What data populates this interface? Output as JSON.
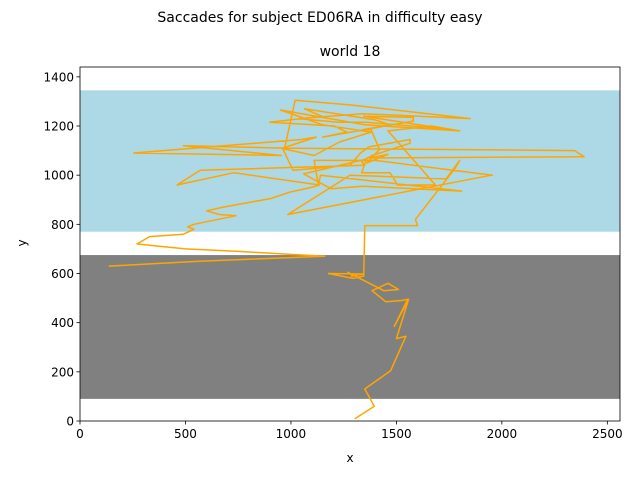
{
  "chart_data": {
    "type": "line",
    "suptitle": "Saccades for subject ED06RA in difficulty easy",
    "title": "world 18",
    "xlabel": "x",
    "ylabel": "y",
    "xlim": [
      0,
      2560
    ],
    "ylim": [
      0,
      1440
    ],
    "xticks": [
      0,
      500,
      1000,
      1500,
      2000,
      2500
    ],
    "yticks": [
      0,
      200,
      400,
      600,
      800,
      1000,
      1200,
      1400
    ],
    "regions": [
      {
        "name": "sky band",
        "y0": 770,
        "y1": 1345,
        "color": "#add8e6"
      },
      {
        "name": "ground band",
        "y0": 90,
        "y1": 675,
        "color": "#808080"
      }
    ],
    "line_color": "#ffa500",
    "series": [
      {
        "x": [
          1305,
          1395,
          1350,
          1473,
          1545,
          1500,
          1558,
          1490,
          1553,
          1525,
          1450,
          1385,
          1460,
          1510,
          1440,
          1270,
          1295,
          1285,
          1345,
          1178,
          1295,
          1345,
          1350,
          1350,
          1600,
          1590,
          1780,
          1800,
          1735,
          1280,
          985,
          1950,
          1955,
          1400,
          1110,
          1130,
          1140,
          1810,
          1340,
          1190,
          1060,
          1355,
          1360,
          1335,
          1470,
          1505,
          1685,
          1460,
          1665,
          1800,
          1350,
          950,
          985,
          1150,
          1380,
          1230,
          1110,
          950,
          2345,
          2390,
          1375,
          1460,
          1360,
          1420,
          1380,
          1340,
          1470,
          1400,
          1065,
          1145,
          900,
          1205,
          1265,
          1150,
          1580,
          1580,
          1345,
          1720,
          1355,
          1225,
          1035,
          1340,
          1850,
          1290,
          1020,
          970,
          490,
          955,
          255,
          1050,
          1120,
          960,
          1010,
          1280,
          1330,
          1370,
          1565,
          1565,
          1385,
          1335,
          1350,
          570,
          460,
          730,
          1135,
          1095,
          990,
          905,
          680,
          600,
          660,
          740,
          540,
          510,
          540,
          490,
          330,
          270,
          500,
          750,
          1160,
          565,
          140
        ],
        "y": [
          10,
          60,
          130,
          205,
          345,
          335,
          495,
          385,
          495,
          490,
          485,
          530,
          560,
          535,
          530,
          605,
          590,
          590,
          598,
          600,
          580,
          590,
          795,
          795,
          795,
          820,
          1030,
          1060,
          985,
          1000,
          840,
          1000,
          1000,
          1060,
          1060,
          960,
          1000,
          935,
          955,
          945,
          1005,
          1065,
          1070,
          1010,
          1010,
          960,
          960,
          1180,
          1200,
          1180,
          1205,
          1265,
          1255,
          1205,
          1175,
          1135,
          1080,
          1110,
          1100,
          1075,
          1070,
          1085,
          1050,
          1105,
          1185,
          1185,
          1205,
          1225,
          1270,
          1240,
          1215,
          1200,
          1175,
          1155,
          1220,
          1235,
          1240,
          1190,
          1215,
          1215,
          1230,
          1250,
          1230,
          1285,
          1305,
          1110,
          1120,
          1080,
          1090,
          1145,
          1155,
          1110,
          1020,
          1040,
          1090,
          1115,
          1145,
          1130,
          1080,
          1055,
          1040,
          1020,
          960,
          1010,
          960,
          950,
          930,
          905,
          870,
          855,
          840,
          835,
          800,
          790,
          780,
          760,
          750,
          720,
          700,
          690,
          670,
          650,
          630
        ]
      }
    ]
  }
}
